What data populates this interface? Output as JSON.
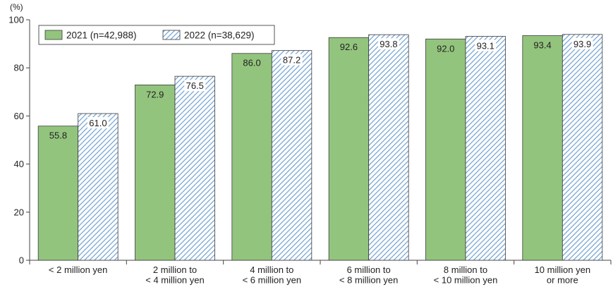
{
  "chart_data": {
    "type": "bar",
    "title": "",
    "xlabel": "",
    "ylabel": "(%)",
    "ylim": [
      0,
      100
    ],
    "yticks": [
      0,
      20,
      40,
      60,
      80,
      100
    ],
    "grid": false,
    "legend_position": "top-left",
    "categories": [
      [
        "< 2 million yen"
      ],
      [
        "2 million to",
        "< 4 million yen"
      ],
      [
        "4 million to",
        "< 6 million yen"
      ],
      [
        "6 million to",
        "< 8 million yen"
      ],
      [
        "8 million to",
        "< 10 million yen"
      ],
      [
        "10 million yen",
        "or more"
      ]
    ],
    "series": [
      {
        "name": "2021 (n=42,988)",
        "style": "solid",
        "color": "#93c47d",
        "values": [
          55.8,
          72.9,
          86.0,
          92.6,
          92.0,
          93.4
        ]
      },
      {
        "name": "2022 (n=38,629)",
        "style": "hatched",
        "color": "#6fa0d0",
        "values": [
          61.0,
          76.5,
          87.2,
          93.8,
          93.1,
          93.9
        ]
      }
    ]
  }
}
